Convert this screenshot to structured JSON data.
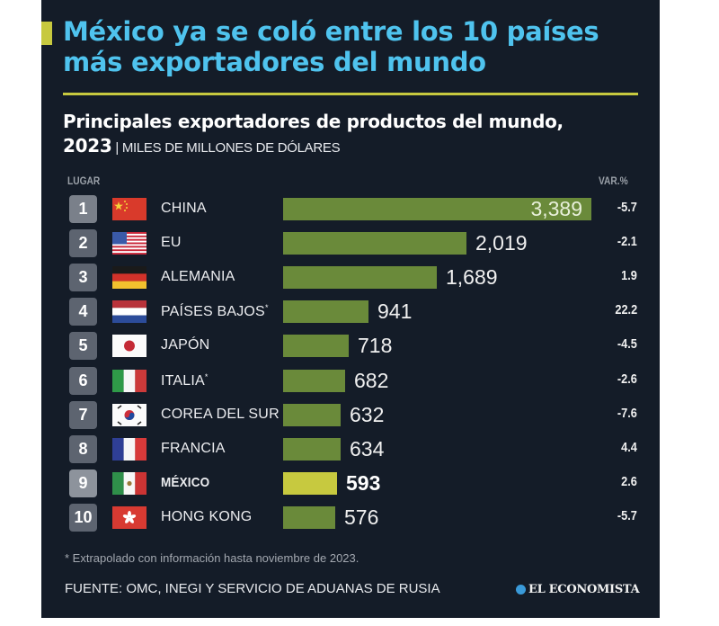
{
  "title": {
    "line1": "México ya se coló entre los 10 países",
    "line2": "más exportadores del mundo"
  },
  "subtitle": {
    "line1": "Principales exportadores de productos del mundo,",
    "year": "2023",
    "separator": " | ",
    "units": "MILES DE MILLONES DE DÓLARES"
  },
  "columns": {
    "rank": "LUGAR",
    "var": "VAR.%"
  },
  "colors": {
    "bar": "#6a8a3a",
    "highlight": "#c7c93f",
    "title": "#4fc3ee",
    "background": "#141c28"
  },
  "chart_data": {
    "type": "bar",
    "orientation": "horizontal",
    "title": "Principales exportadores de productos del mundo, 2023",
    "units": "MILES DE MILLONES DE DÓLARES",
    "categories": [
      "CHINA",
      "EU",
      "ALEMANIA",
      "PAÍSES BAJOS",
      "JAPÓN",
      "ITALIA",
      "COREA DEL SUR",
      "FRANCIA",
      "MÉXICO",
      "HONG KONG"
    ],
    "ranks": [
      "1",
      "2",
      "3",
      "4",
      "5",
      "6",
      "7",
      "8",
      "9",
      "10"
    ],
    "values": [
      3389,
      2019,
      1689,
      941,
      718,
      682,
      632,
      634,
      593,
      576
    ],
    "value_labels": [
      "3,389",
      "2,019",
      "1,689",
      "941",
      "718",
      "682",
      "632",
      "634",
      "593",
      "576"
    ],
    "var_pct": [
      "-5.7",
      "-2.1",
      "1.9",
      "22.2",
      "-4.5",
      "-2.6",
      "-7.6",
      "4.4",
      "2.6",
      "-5.7"
    ],
    "asterisk": [
      false,
      false,
      false,
      true,
      false,
      true,
      false,
      false,
      false,
      false
    ],
    "flags": [
      "china-flag",
      "usa-flag",
      "germany-flag",
      "netherlands-flag",
      "japan-flag",
      "italy-flag",
      "south-korea-flag",
      "france-flag",
      "mexico-flag",
      "hong-kong-flag"
    ],
    "highlight": "MÉXICO",
    "xlim": [
      0,
      3389
    ]
  },
  "footer": {
    "footnote": "* Extrapolado con información hasta noviembre de 2023.",
    "source": "FUENTE: OMC, INEGI Y SERVICIO DE ADUANAS DE RUSIA",
    "logo": "EL ECONOMISTA"
  }
}
